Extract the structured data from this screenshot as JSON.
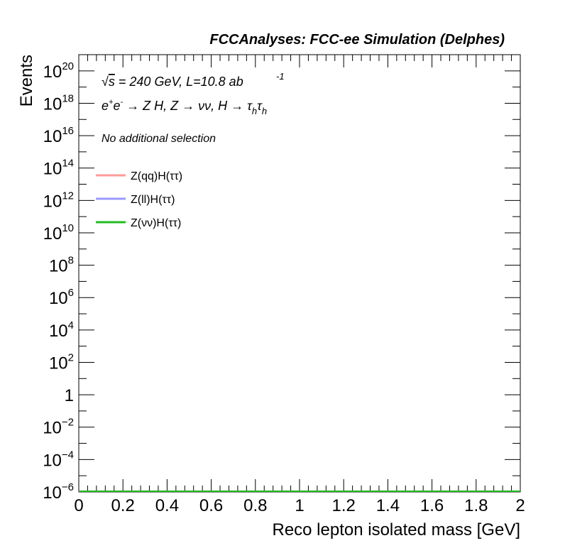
{
  "chart_data": {
    "type": "line",
    "title": "FCCAnalyses: FCC-ee Simulation (Delphes)",
    "xlabel": "Reco lepton isolated mass [GeV]",
    "ylabel": "Events",
    "xlim": [
      0,
      2
    ],
    "y_scale": "log",
    "ylim_exponent": [
      -6,
      21
    ],
    "x_ticks": [
      "0",
      "0.2",
      "0.4",
      "0.6",
      "0.8",
      "1",
      "1.2",
      "1.4",
      "1.6",
      "1.8",
      "2"
    ],
    "y_ticks": [
      {
        "base": "10",
        "exp": "20",
        "e": 20
      },
      {
        "base": "10",
        "exp": "18",
        "e": 18
      },
      {
        "base": "10",
        "exp": "16",
        "e": 16
      },
      {
        "base": "10",
        "exp": "14",
        "e": 14
      },
      {
        "base": "10",
        "exp": "12",
        "e": 12
      },
      {
        "base": "10",
        "exp": "10",
        "e": 10
      },
      {
        "base": "10",
        "exp": "8",
        "e": 8
      },
      {
        "base": "10",
        "exp": "6",
        "e": 6
      },
      {
        "base": "10",
        "exp": "4",
        "e": 4
      },
      {
        "base": "10",
        "exp": "2",
        "e": 2
      },
      {
        "base": "1",
        "exp": "",
        "e": 0
      },
      {
        "base": "10",
        "exp": "−2",
        "e": -2
      },
      {
        "base": "10",
        "exp": "−4",
        "e": -4
      },
      {
        "base": "10",
        "exp": "−6",
        "e": -6
      }
    ],
    "annotations": {
      "energy": {
        "sqrt": "√",
        "s": "s",
        "rest": " = 240 GeV, L=10.8 ab",
        "exp": "-1"
      },
      "process": {
        "e": "e",
        "plus": "+",
        "e2": "e",
        "minus": "-",
        "rest1": " → Z H, Z  → νν, H → τ",
        "sub1": "h",
        "tau2": "τ",
        "sub2": "h"
      },
      "selection": "No additional selection"
    },
    "legend_position": "top-left",
    "series": [
      {
        "name": "Z(qq)H(ττ)",
        "color": "#ff9999",
        "x": [
          0,
          2
        ],
        "y": [
          1e-06,
          1e-06
        ]
      },
      {
        "name": "Z(ll)H(ττ)",
        "color": "#9999ff",
        "x": [
          0,
          2
        ],
        "y": [
          1e-06,
          1e-06
        ]
      },
      {
        "name": "Z(νν)H(ττ)",
        "color": "#22bb22",
        "x": [
          0,
          2
        ],
        "y": [
          1e-06,
          1e-06
        ]
      }
    ]
  }
}
